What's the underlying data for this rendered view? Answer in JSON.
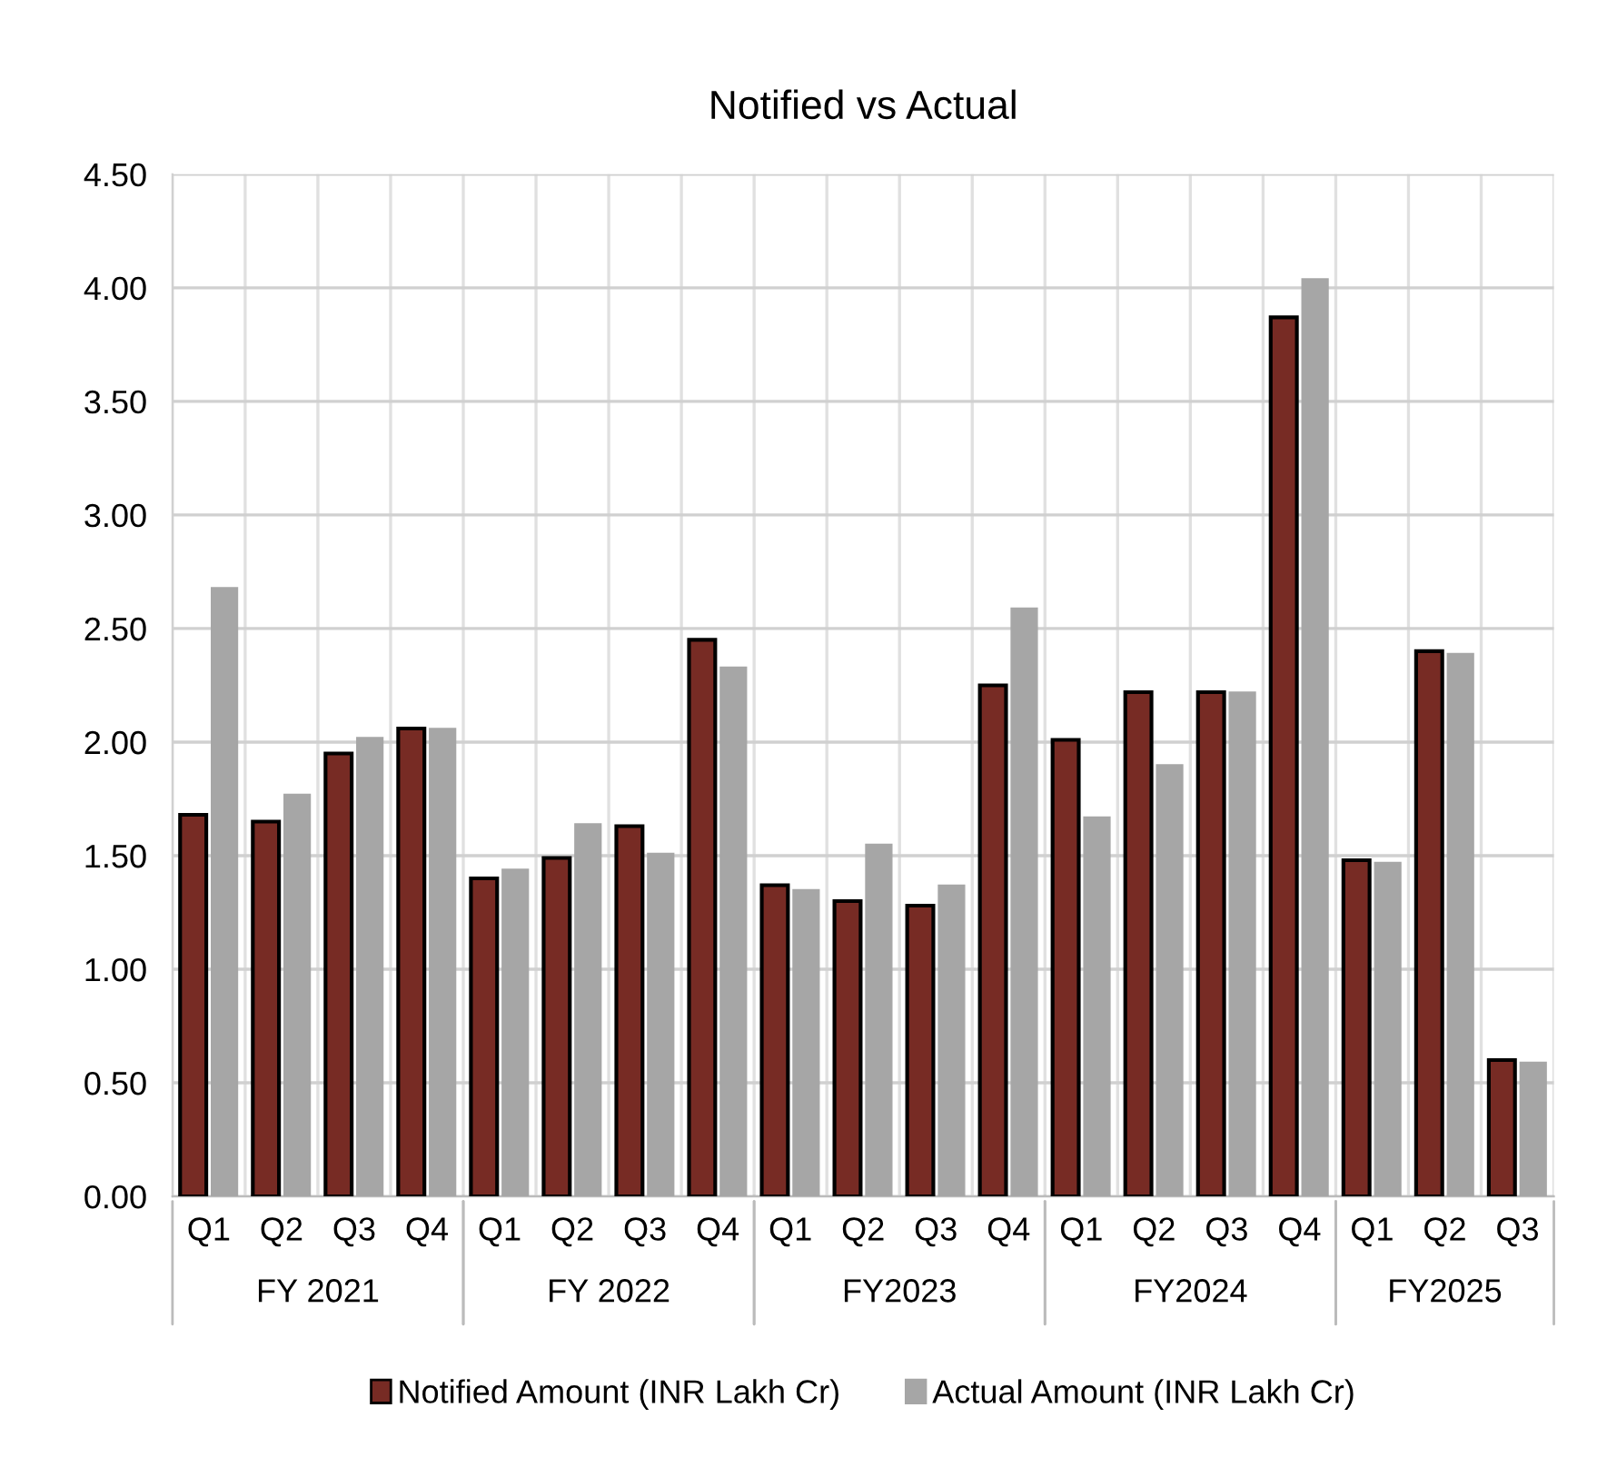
{
  "chart_data": {
    "type": "bar",
    "title": "Notified vs Actual",
    "categories": [
      "Q1",
      "Q2",
      "Q3",
      "Q4",
      "Q1",
      "Q2",
      "Q3",
      "Q4",
      "Q1",
      "Q2",
      "Q3",
      "Q4",
      "Q1",
      "Q2",
      "Q3",
      "Q4",
      "Q1",
      "Q2",
      "Q3"
    ],
    "series": [
      {
        "name": "Notified Amount (INR Lakh Cr)",
        "color": "#772b24",
        "values": [
          1.68,
          1.65,
          1.95,
          2.06,
          1.4,
          1.49,
          1.63,
          2.45,
          1.37,
          1.3,
          1.28,
          2.25,
          2.01,
          2.22,
          2.22,
          3.87,
          1.48,
          2.4,
          0.6
        ]
      },
      {
        "name": "Actual Amount (INR Lakh Cr)",
        "color": "#a6a6a6",
        "values": [
          2.68,
          1.77,
          2.02,
          2.06,
          1.44,
          1.64,
          1.51,
          2.33,
          1.35,
          1.55,
          1.37,
          2.59,
          1.67,
          1.9,
          2.22,
          4.04,
          1.47,
          2.39,
          0.59
        ]
      }
    ],
    "annotations": [
      "FY 2021",
      "FY 2022",
      "FY2023",
      "FY2024",
      "FY2025"
    ],
    "ylim": [
      0,
      4.5
    ],
    "yticks": [
      {
        "value": 0,
        "label": "0.00"
      },
      {
        "value": 0.5,
        "label": "0.50"
      },
      {
        "value": 1,
        "label": "1.00"
      },
      {
        "value": 1.5,
        "label": "1.50"
      },
      {
        "value": 2,
        "label": "2.00"
      },
      {
        "value": 2.5,
        "label": "2.50"
      },
      {
        "value": 3,
        "label": "3.00"
      },
      {
        "value": 3.5,
        "label": "3.50"
      },
      {
        "value": 4,
        "label": "4.00"
      },
      {
        "value": 4.5,
        "label": "4.50"
      }
    ],
    "grid": true,
    "legend": "bottom"
  }
}
